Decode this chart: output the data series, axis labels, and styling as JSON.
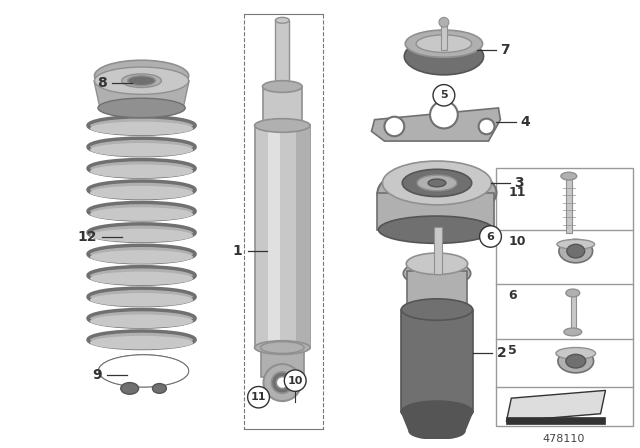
{
  "background_color": "#ffffff",
  "part_number": "478110",
  "fig_width": 6.4,
  "fig_height": 4.48,
  "silver_light": "#c8c8c8",
  "silver_mid": "#b0b0b0",
  "silver_dark": "#909090",
  "gray_dark": "#707070",
  "gray_darker": "#555555",
  "line_color": "#333333",
  "label_color": "#111111",
  "panel_border": "#aaaaaa"
}
